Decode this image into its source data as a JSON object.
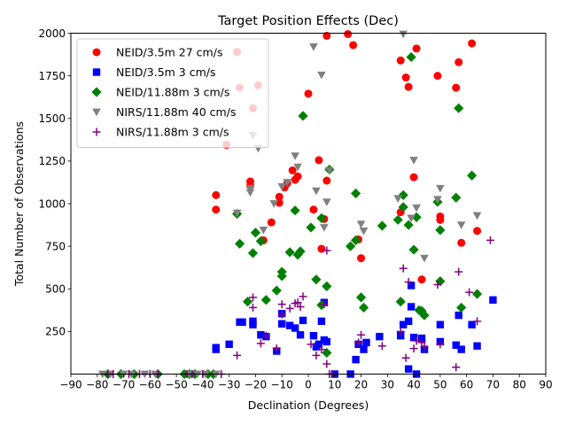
{
  "chart_data": {
    "type": "scatter",
    "title": "Target Position Effects (Dec)",
    "xlabel": "Declination (Degrees)",
    "ylabel": "Total Number of Observations",
    "xlim": [
      -90,
      90
    ],
    "ylim": [
      0,
      2000
    ],
    "xticks": [
      -90,
      -80,
      -70,
      -60,
      -50,
      -40,
      -30,
      -20,
      -10,
      0,
      10,
      20,
      30,
      40,
      50,
      60,
      70,
      80,
      90
    ],
    "yticks": [
      250,
      500,
      750,
      1000,
      1250,
      1500,
      1750,
      2000
    ],
    "grid": false,
    "legend_position": "top-left",
    "series": [
      {
        "name": "NEID/3.5m 27 cm/s",
        "marker": "circle",
        "color": "#ff0000",
        "points": [
          [
            -35,
            1050
          ],
          [
            -35,
            965
          ],
          [
            -31,
            1345
          ],
          [
            -27,
            1890
          ],
          [
            -26,
            1680
          ],
          [
            -22,
            1105
          ],
          [
            -22,
            1130
          ],
          [
            -21,
            1560
          ],
          [
            -19,
            1695
          ],
          [
            -17,
            785
          ],
          [
            -14,
            890
          ],
          [
            -11,
            1040
          ],
          [
            -11,
            1005
          ],
          [
            -9,
            1095
          ],
          [
            -8,
            1120
          ],
          [
            -6,
            1195
          ],
          [
            -5,
            1140
          ],
          [
            -4,
            1160
          ],
          [
            0,
            1645
          ],
          [
            2,
            965
          ],
          [
            4,
            1255
          ],
          [
            5,
            735
          ],
          [
            6,
            910
          ],
          [
            7,
            1985
          ],
          [
            7,
            1135
          ],
          [
            15,
            1995
          ],
          [
            17,
            1930
          ],
          [
            19,
            790
          ],
          [
            20,
            680
          ],
          [
            35,
            950
          ],
          [
            35,
            1840
          ],
          [
            37,
            1740
          ],
          [
            38,
            1685
          ],
          [
            40,
            1155
          ],
          [
            41,
            1910
          ],
          [
            43,
            555
          ],
          [
            49,
            1750
          ],
          [
            50,
            905
          ],
          [
            50,
            925
          ],
          [
            56,
            1680
          ],
          [
            57,
            1830
          ],
          [
            58,
            770
          ],
          [
            62,
            1940
          ],
          [
            64,
            840
          ]
        ]
      },
      {
        "name": "NEID/3.5m 3 cm/s",
        "marker": "square",
        "color": "#0000ff",
        "points": [
          [
            -35,
            155
          ],
          [
            -35,
            145
          ],
          [
            -30,
            175
          ],
          [
            -26,
            305
          ],
          [
            -25,
            305
          ],
          [
            -21,
            310
          ],
          [
            -21,
            290
          ],
          [
            -18,
            230
          ],
          [
            -16,
            220
          ],
          [
            -12,
            135
          ],
          [
            -10,
            295
          ],
          [
            -10,
            355
          ],
          [
            -7,
            285
          ],
          [
            -5,
            270
          ],
          [
            -3,
            230
          ],
          [
            -2,
            315
          ],
          [
            2,
            225
          ],
          [
            3,
            160
          ],
          [
            4,
            175
          ],
          [
            5,
            310
          ],
          [
            6,
            420
          ],
          [
            6,
            200
          ],
          [
            7,
            190
          ],
          [
            10,
            0
          ],
          [
            16,
            0
          ],
          [
            18,
            85
          ],
          [
            19,
            175
          ],
          [
            21,
            145
          ],
          [
            22,
            185
          ],
          [
            27,
            220
          ],
          [
            35,
            225
          ],
          [
            36,
            290
          ],
          [
            38,
            30
          ],
          [
            38,
            310
          ],
          [
            39,
            520
          ],
          [
            39,
            395
          ],
          [
            40,
            215
          ],
          [
            41,
            0
          ],
          [
            43,
            210
          ],
          [
            44,
            145
          ],
          [
            50,
            290
          ],
          [
            50,
            190
          ],
          [
            56,
            170
          ],
          [
            57,
            345
          ],
          [
            58,
            145
          ],
          [
            62,
            290
          ],
          [
            64,
            165
          ],
          [
            70,
            435
          ]
        ]
      },
      {
        "name": "NEID/11.88m 3 cm/s",
        "marker": "diamond",
        "color": "#008000",
        "points": [
          [
            -76,
            0
          ],
          [
            -71,
            0
          ],
          [
            -66,
            0
          ],
          [
            -57,
            0
          ],
          [
            -47,
            0
          ],
          [
            -45,
            0
          ],
          [
            -43,
            0
          ],
          [
            -38,
            0
          ],
          [
            -36,
            0
          ],
          [
            -27,
            940
          ],
          [
            -26,
            765
          ],
          [
            -23,
            425
          ],
          [
            -21,
            710
          ],
          [
            -20,
            830
          ],
          [
            -18,
            780
          ],
          [
            -16,
            435
          ],
          [
            -12,
            490
          ],
          [
            -10,
            600
          ],
          [
            -10,
            575
          ],
          [
            -7,
            715
          ],
          [
            -5,
            960
          ],
          [
            -4,
            700
          ],
          [
            -3,
            720
          ],
          [
            -2,
            1515
          ],
          [
            1,
            860
          ],
          [
            3,
            555
          ],
          [
            5,
            915
          ],
          [
            5,
            405
          ],
          [
            7,
            125
          ],
          [
            7,
            515
          ],
          [
            8,
            1200
          ],
          [
            16,
            750
          ],
          [
            18,
            785
          ],
          [
            18,
            1060
          ],
          [
            20,
            450
          ],
          [
            21,
            390
          ],
          [
            28,
            870
          ],
          [
            34,
            905
          ],
          [
            35,
            425
          ],
          [
            36,
            1050
          ],
          [
            36,
            980
          ],
          [
            38,
            875
          ],
          [
            39,
            1860
          ],
          [
            40,
            730
          ],
          [
            41,
            920
          ],
          [
            42,
            375
          ],
          [
            43,
            370
          ],
          [
            44,
            345
          ],
          [
            49,
            1010
          ],
          [
            50,
            545
          ],
          [
            50,
            845
          ],
          [
            56,
            1035
          ],
          [
            57,
            1560
          ],
          [
            58,
            390
          ],
          [
            62,
            1165
          ],
          [
            64,
            470
          ]
        ]
      },
      {
        "name": "NIRS/11.88m 40 cm/s",
        "marker": "triangle-down",
        "color": "#808080",
        "points": [
          [
            -78,
            0
          ],
          [
            -75,
            0
          ],
          [
            -70,
            0
          ],
          [
            -67,
            0
          ],
          [
            -62,
            0
          ],
          [
            -58,
            0
          ],
          [
            -45,
            0
          ],
          [
            -42,
            0
          ],
          [
            -39,
            0
          ],
          [
            -35,
            0
          ],
          [
            -27,
            945
          ],
          [
            -22,
            1065
          ],
          [
            -22,
            1090
          ],
          [
            -21,
            1400
          ],
          [
            -19,
            1325
          ],
          [
            -17,
            845
          ],
          [
            -13,
            1000
          ],
          [
            -10,
            1100
          ],
          [
            -8,
            1125
          ],
          [
            -5,
            1280
          ],
          [
            -4,
            1215
          ],
          [
            2,
            1920
          ],
          [
            3,
            1075
          ],
          [
            5,
            1755
          ],
          [
            6,
            860
          ],
          [
            7,
            1010
          ],
          [
            8,
            1195
          ],
          [
            20,
            880
          ],
          [
            21,
            840
          ],
          [
            34,
            1030
          ],
          [
            36,
            1995
          ],
          [
            39,
            915
          ],
          [
            40,
            1255
          ],
          [
            41,
            975
          ],
          [
            44,
            680
          ],
          [
            49,
            1025
          ],
          [
            50,
            1090
          ],
          [
            58,
            875
          ],
          [
            64,
            930
          ]
        ]
      },
      {
        "name": "NIRS/11.88m 3 cm/s",
        "marker": "plus",
        "color": "#800080",
        "points": [
          [
            -76,
            0
          ],
          [
            -74,
            0
          ],
          [
            -68,
            0
          ],
          [
            -64,
            0
          ],
          [
            -60,
            0
          ],
          [
            -57,
            0
          ],
          [
            -46,
            0
          ],
          [
            -44,
            0
          ],
          [
            -40,
            0
          ],
          [
            -33,
            0
          ],
          [
            -27,
            110
          ],
          [
            -21,
            450
          ],
          [
            -21,
            390
          ],
          [
            -18,
            180
          ],
          [
            -16,
            225
          ],
          [
            -12,
            150
          ],
          [
            -10,
            410
          ],
          [
            -10,
            350
          ],
          [
            -7,
            385
          ],
          [
            -5,
            415
          ],
          [
            -4,
            420
          ],
          [
            -3,
            395
          ],
          [
            -2,
            455
          ],
          [
            1,
            175
          ],
          [
            3,
            110
          ],
          [
            5,
            145
          ],
          [
            6,
            410
          ],
          [
            7,
            725
          ],
          [
            7,
            60
          ],
          [
            8,
            0
          ],
          [
            9,
            0
          ],
          [
            19,
            185
          ],
          [
            20,
            230
          ],
          [
            28,
            165
          ],
          [
            35,
            250
          ],
          [
            36,
            620
          ],
          [
            37,
            95
          ],
          [
            38,
            540
          ],
          [
            40,
            150
          ],
          [
            41,
            195
          ],
          [
            43,
            185
          ],
          [
            44,
            160
          ],
          [
            49,
            525
          ],
          [
            50,
            175
          ],
          [
            56,
            40
          ],
          [
            57,
            600
          ],
          [
            61,
            480
          ],
          [
            64,
            310
          ],
          [
            69,
            785
          ]
        ]
      }
    ]
  }
}
